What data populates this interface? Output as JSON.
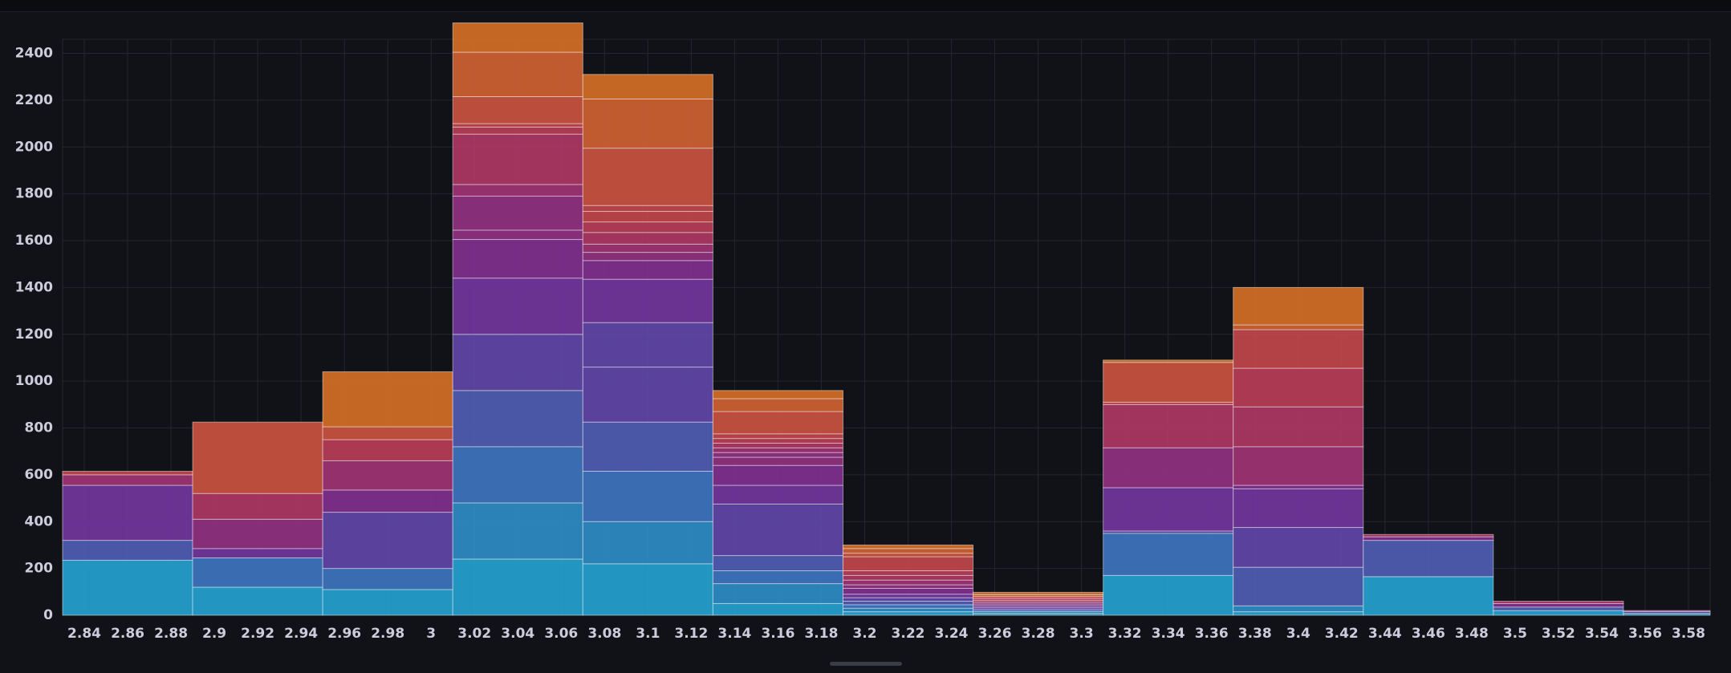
{
  "chart_data": {
    "type": "bar",
    "stacked": true,
    "grid": true,
    "ylim": [
      0,
      2460
    ],
    "xlim": [
      2.83,
      3.59
    ],
    "yticks": [
      0,
      200,
      400,
      600,
      800,
      1000,
      1200,
      1400,
      1600,
      1800,
      2000,
      2200,
      2400
    ],
    "xticks": [
      "2.84",
      "2.86",
      "2.88",
      "2.9",
      "2.92",
      "2.94",
      "2.96",
      "2.98",
      "3",
      "3.02",
      "3.04",
      "3.06",
      "3.08",
      "3.1",
      "3.12",
      "3.14",
      "3.16",
      "3.18",
      "3.2",
      "3.22",
      "3.24",
      "3.26",
      "3.28",
      "3.3",
      "3.32",
      "3.34",
      "3.36",
      "3.38",
      "3.4",
      "3.42",
      "3.44",
      "3.46",
      "3.48",
      "3.5",
      "3.52",
      "3.54",
      "3.56",
      "3.58"
    ],
    "bins": [
      {
        "x0": 2.83,
        "x1": 2.89,
        "values": [
          235,
          85,
          235,
          45,
          15
        ]
      },
      {
        "x0": 2.89,
        "x1": 2.95,
        "values": [
          120,
          125,
          40,
          125,
          110,
          305
        ]
      },
      {
        "x0": 2.95,
        "x1": 3.01,
        "values": [
          110,
          90,
          240,
          95,
          125,
          90,
          55,
          235
        ]
      },
      {
        "x0": 3.01,
        "x1": 3.07,
        "values": [
          240,
          240,
          240,
          240,
          240,
          240,
          165,
          40,
          145,
          50,
          215,
          30,
          15,
          115,
          190,
          125
        ]
      },
      {
        "x0": 3.07,
        "x1": 3.13,
        "values": [
          220,
          180,
          215,
          210,
          235,
          190,
          185,
          80,
          35,
          35,
          50,
          45,
          45,
          25,
          245,
          210,
          105
        ]
      },
      {
        "x0": 3.13,
        "x1": 3.19,
        "values": [
          50,
          85,
          55,
          65,
          220,
          80,
          85,
          35,
          20,
          20,
          20,
          20,
          20,
          95,
          55,
          35
        ]
      },
      {
        "x0": 3.19,
        "x1": 3.25,
        "values": [
          15,
          15,
          15,
          15,
          15,
          15,
          25,
          15,
          20,
          20,
          20,
          60,
          15,
          20,
          15
        ]
      },
      {
        "x0": 3.25,
        "x1": 3.31,
        "values": [
          8,
          8,
          8,
          8,
          8,
          8,
          8,
          8,
          8,
          8,
          8,
          10
        ]
      },
      {
        "x0": 3.31,
        "x1": 3.37,
        "values": [
          170,
          180,
          10,
          185,
          170,
          185,
          10,
          170,
          10
        ]
      },
      {
        "x0": 3.37,
        "x1": 3.43,
        "values": [
          15,
          25,
          165,
          170,
          165,
          15,
          165,
          170,
          165,
          165,
          20,
          160
        ]
      },
      {
        "x0": 3.43,
        "x1": 3.49,
        "values": [
          165,
          155,
          15,
          10
        ]
      },
      {
        "x0": 3.49,
        "x1": 3.55,
        "values": [
          20,
          15,
          15,
          10
        ]
      },
      {
        "x0": 3.55,
        "x1": 3.61,
        "values": [
          8,
          8,
          4
        ]
      }
    ],
    "palette": [
      "#24a2d0",
      "#2e8cc6",
      "#3d74be",
      "#4f5db4",
      "#6147a8",
      "#72369d",
      "#81308f",
      "#903181",
      "#9f3373",
      "#ac3764",
      "#b73d57",
      "#c1474b",
      "#c9533f",
      "#cf6132",
      "#d46f26"
    ]
  }
}
